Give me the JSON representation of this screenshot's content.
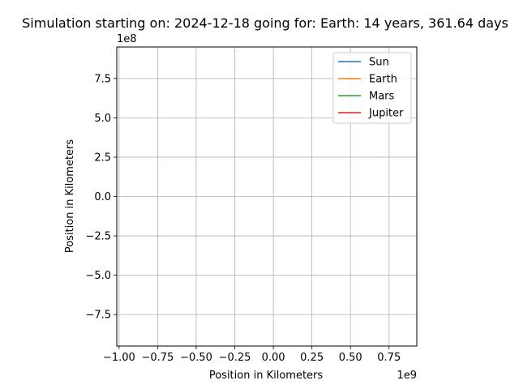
{
  "chart_data": {
    "type": "line",
    "title": "Simulation starting on: 2024-12-18 going for: Earth: 14 years, 361.64 days",
    "xlabel": "Position in Kilometers",
    "ylabel": "Position in Kilometers",
    "x_scale_label": "1e9",
    "y_scale_label": "1e8",
    "xlim": [
      -1.015,
      0.93
    ],
    "ylim": [
      -9.5,
      9.5
    ],
    "x_ticks": [
      {
        "value": -1.0,
        "label": "−1.00"
      },
      {
        "value": -0.75,
        "label": "−0.75"
      },
      {
        "value": -0.5,
        "label": "−0.50"
      },
      {
        "value": -0.25,
        "label": "−0.25"
      },
      {
        "value": 0.0,
        "label": "0.00"
      },
      {
        "value": 0.25,
        "label": "0.25"
      },
      {
        "value": 0.5,
        "label": "0.50"
      },
      {
        "value": 0.75,
        "label": "0.75"
      }
    ],
    "y_ticks": [
      {
        "value": 7.5,
        "label": "7.5"
      },
      {
        "value": 5.0,
        "label": "5.0"
      },
      {
        "value": 2.5,
        "label": "2.5"
      },
      {
        "value": 0.0,
        "label": "0.0"
      },
      {
        "value": -2.5,
        "label": "−2.5"
      },
      {
        "value": -5.0,
        "label": "−5.0"
      },
      {
        "value": -7.5,
        "label": "−7.5"
      }
    ],
    "grid": true,
    "legend_position": "top-right",
    "series": [
      {
        "name": "Sun",
        "color": "#1f77b4",
        "x": [],
        "y": []
      },
      {
        "name": "Earth",
        "color": "#ff7f0e",
        "x": [],
        "y": []
      },
      {
        "name": "Mars",
        "color": "#2ca02c",
        "x": [],
        "y": []
      },
      {
        "name": "Jupiter",
        "color": "#d62728",
        "x": [],
        "y": []
      }
    ]
  }
}
